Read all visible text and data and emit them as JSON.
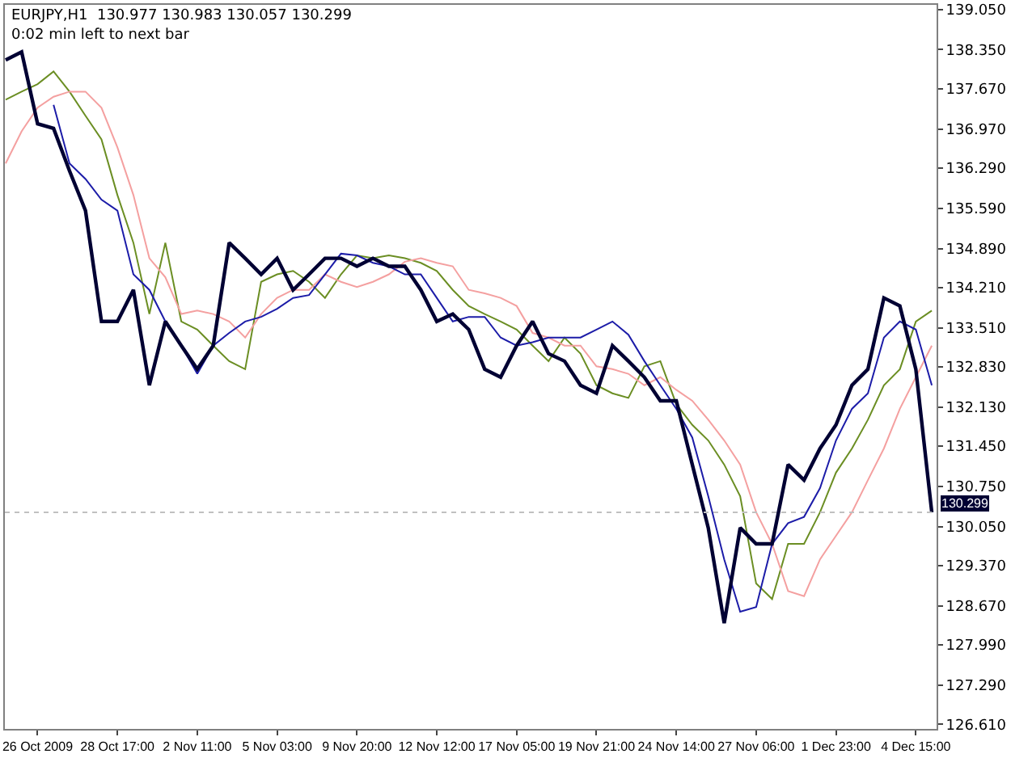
{
  "chart_data": {
    "type": "line",
    "categories": [
      null,
      null,
      "26 Oct 2009",
      null,
      null,
      null,
      null,
      "28 Oct 17:00",
      null,
      null,
      null,
      null,
      "2 Nov 11:00",
      null,
      null,
      null,
      null,
      "5 Nov 03:00",
      null,
      null,
      null,
      null,
      "9 Nov 20:00",
      null,
      null,
      null,
      null,
      "12 Nov 12:00",
      null,
      null,
      null,
      null,
      "17 Nov 05:00",
      null,
      null,
      null,
      null,
      "19 Nov 21:00",
      null,
      null,
      null,
      null,
      "24 Nov 14:00",
      null,
      null,
      null,
      null,
      "27 Nov 06:00",
      null,
      null,
      null,
      null,
      "1 Dec 23:00",
      null,
      null,
      null,
      null,
      "4 Dec 15:00",
      null
    ],
    "series": [
      {
        "color": "#6b8e23",
        "values": [
          137.48,
          137.62,
          137.75,
          137.97,
          137.62,
          137.2,
          136.79,
          135.82,
          134.99,
          133.75,
          134.99,
          133.62,
          133.48,
          133.2,
          132.93,
          132.79,
          134.31,
          134.44,
          134.5,
          134.31,
          134.03,
          134.44,
          134.77,
          134.72,
          134.77,
          134.72,
          134.64,
          134.5,
          134.17,
          133.89,
          133.75,
          133.62,
          133.48,
          133.2,
          132.93,
          133.34,
          133.06,
          132.51,
          132.37,
          132.29,
          132.84,
          132.93,
          132.18,
          131.82,
          131.55,
          131.13,
          130.58,
          129.06,
          128.79,
          129.75,
          129.75,
          130.3,
          130.99,
          131.41,
          131.91,
          132.51,
          132.79,
          133.62,
          133.81
        ]
      },
      {
        "color": "#f4a0a0",
        "values": [
          136.37,
          136.93,
          137.34,
          137.53,
          137.62,
          137.62,
          137.34,
          136.65,
          135.82,
          134.72,
          134.39,
          133.75,
          133.81,
          133.75,
          133.62,
          133.34,
          133.75,
          134.03,
          134.17,
          134.17,
          134.44,
          134.31,
          134.22,
          134.31,
          134.44,
          134.66,
          134.72,
          134.64,
          134.58,
          134.17,
          134.11,
          134.03,
          133.89,
          133.42,
          133.34,
          133.2,
          133.2,
          132.84,
          132.79,
          132.71,
          132.51,
          132.65,
          132.43,
          132.24,
          131.91,
          131.55,
          131.13,
          130.3,
          129.75,
          128.93,
          128.84,
          129.48,
          129.89,
          130.3,
          130.86,
          131.41,
          132.1,
          132.65,
          133.2
        ]
      },
      {
        "color": "#1c1ca8",
        "values": [
          null,
          null,
          null,
          137.39,
          136.37,
          136.1,
          135.74,
          135.55,
          134.44,
          134.17,
          133.62,
          133.2,
          132.71,
          133.2,
          133.42,
          133.62,
          133.7,
          133.84,
          134.03,
          134.08,
          134.44,
          134.8,
          134.77,
          134.64,
          134.58,
          134.44,
          134.44,
          134.03,
          133.62,
          133.7,
          133.7,
          133.34,
          133.2,
          133.26,
          133.34,
          133.34,
          133.34,
          133.48,
          133.62,
          133.39,
          132.93,
          132.51,
          132.1,
          131.6,
          130.58,
          129.48,
          128.57,
          128.65,
          129.75,
          130.11,
          130.22,
          130.72,
          131.55,
          132.1,
          132.37,
          133.34,
          133.62,
          133.48,
          132.51
        ]
      },
      {
        "color": "#000033",
        "values": [
          138.17,
          138.31,
          137.06,
          136.98,
          136.24,
          135.55,
          133.62,
          133.62,
          134.17,
          132.51,
          133.62,
          133.2,
          132.79,
          133.2,
          134.99,
          134.72,
          134.44,
          134.72,
          134.17,
          134.44,
          134.72,
          134.72,
          134.58,
          134.72,
          134.58,
          134.58,
          134.17,
          133.62,
          133.75,
          133.48,
          132.79,
          132.65,
          133.2,
          133.62,
          133.06,
          132.93,
          132.51,
          132.37,
          133.2,
          132.93,
          132.65,
          132.24,
          132.24,
          131.13,
          130.03,
          128.37,
          130.03,
          129.75,
          129.75,
          131.13,
          130.86,
          131.41,
          131.82,
          132.51,
          132.79,
          134.03,
          133.89,
          132.79,
          130.3
        ]
      }
    ],
    "ylim": [
      126.53,
      139.13
    ],
    "yticks": [
      {
        "value": 126.61,
        "label": "126.610"
      },
      {
        "value": 127.29,
        "label": "127.290"
      },
      {
        "value": 127.99,
        "label": "127.990"
      },
      {
        "value": 128.67,
        "label": "128.670"
      },
      {
        "value": 129.37,
        "label": "129.370"
      },
      {
        "value": 130.05,
        "label": "130.050"
      },
      {
        "value": 130.75,
        "label": "130.750"
      },
      {
        "value": 131.45,
        "label": "131.450"
      },
      {
        "value": 132.13,
        "label": "132.130"
      },
      {
        "value": 132.83,
        "label": "132.830"
      },
      {
        "value": 133.51,
        "label": "133.510"
      },
      {
        "value": 134.21,
        "label": "134.210"
      },
      {
        "value": 134.89,
        "label": "134.890"
      },
      {
        "value": 135.59,
        "label": "135.590"
      },
      {
        "value": 136.29,
        "label": "136.290"
      },
      {
        "value": 136.97,
        "label": "136.970"
      },
      {
        "value": 137.67,
        "label": "137.670"
      },
      {
        "value": 138.35,
        "label": "138.350"
      },
      {
        "value": 139.05,
        "label": "139.050"
      }
    ],
    "ref_lines": [
      {
        "axis": "y",
        "value": 130.299,
        "label": "130.299",
        "color": "#c0c0c0",
        "line_style": "dotted"
      }
    ],
    "annotations": [
      "EURJPY,H1  130.977 130.983 130.057 130.299",
      "0:02 min left to next bar"
    ],
    "grid": false,
    "marker": "none",
    "line_style": "solid"
  }
}
